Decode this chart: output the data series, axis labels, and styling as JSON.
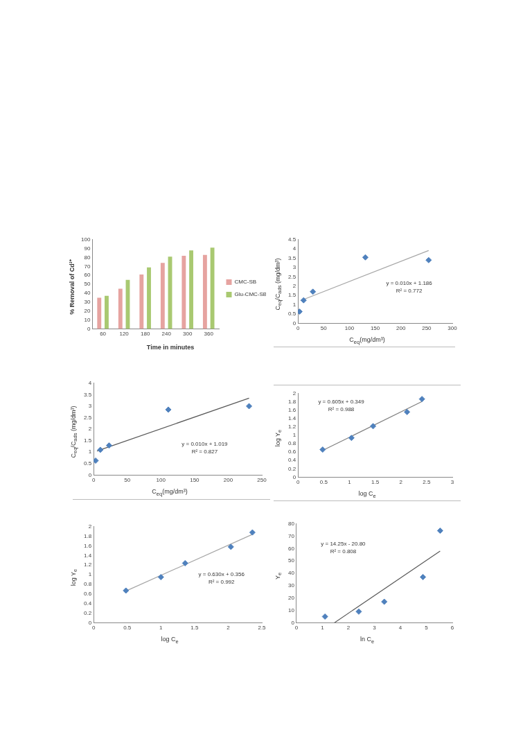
{
  "chart_data": [
    {
      "type": "bar",
      "xlabel": "Time in minutes",
      "ylabel": "% Removal of Cd²⁺",
      "categories": [
        "60",
        "120",
        "180",
        "240",
        "300",
        "360"
      ],
      "series": [
        {
          "name": "CMC-SB",
          "color": "#e6a3a0",
          "values": [
            35,
            45,
            61,
            74,
            82,
            83
          ]
        },
        {
          "name": "Glu-CMC-SB",
          "color": "#a9c971",
          "values": [
            37,
            55,
            69,
            81,
            88,
            91
          ]
        }
      ],
      "ylim": [
        0,
        100
      ],
      "yticks": [
        0,
        10,
        20,
        30,
        40,
        50,
        60,
        70,
        80,
        90,
        100
      ],
      "grid": false,
      "legend": "right"
    },
    {
      "type": "scatter",
      "xlabel": "C$_{eq}$(mg/dm³)",
      "ylabel": "C$_{eq}$/C$_{ads}$ (mg/dm³)",
      "marker": "diamond",
      "series": [
        {
          "color": "#4f81bd",
          "x": [
            3,
            11,
            29,
            131,
            254
          ],
          "values": [
            0.63,
            1.24,
            1.7,
            3.55,
            3.4
          ]
        },
        {
          "type": "line",
          "color": "#a6a6a6",
          "marker": "none",
          "x": [
            5,
            254
          ],
          "values": [
            1.22,
            3.92
          ]
        }
      ],
      "xlim": [
        0,
        300
      ],
      "xticks": [
        0,
        50,
        100,
        150,
        200,
        250,
        300
      ],
      "ylim": [
        0,
        4.5
      ],
      "yticks": [
        0,
        0.5,
        1,
        1.5,
        2,
        2.5,
        3,
        3.5,
        4,
        4.5
      ],
      "grid": false,
      "annotations": [
        "y = 0.010x + 1.186",
        "R² = 0.772"
      ]
    },
    {
      "type": "scatter",
      "xlabel": "C$_{eq}$(mg/dm³)",
      "ylabel": "C$_{eq}$/C$_{ads}$ (mg/dm³)",
      "marker": "diamond",
      "series": [
        {
          "color": "#4f81bd",
          "x": [
            3,
            10,
            23,
            111,
            231
          ],
          "values": [
            0.63,
            1.1,
            1.29,
            2.85,
            3.0
          ]
        },
        {
          "type": "line",
          "color": "#595959",
          "marker": "none",
          "x": [
            5,
            231
          ],
          "values": [
            1.05,
            3.35
          ]
        }
      ],
      "xlim": [
        0,
        250
      ],
      "xticks": [
        0,
        50,
        100,
        150,
        200,
        250
      ],
      "ylim": [
        0,
        4
      ],
      "yticks": [
        0,
        0.5,
        1,
        1.5,
        2,
        2.5,
        3,
        3.5,
        4
      ],
      "grid": false,
      "annotations": [
        "y = 0.010x + 1.019",
        "R² = 0.827"
      ]
    },
    {
      "type": "scatter",
      "xlabel": "log C$_{e}$",
      "ylabel": "log Y$_{e}$",
      "marker": "diamond",
      "series": [
        {
          "color": "#4f81bd",
          "x": [
            0.48,
            1.04,
            1.46,
            2.12,
            2.41
          ],
          "values": [
            0.66,
            0.94,
            1.22,
            1.56,
            1.87
          ]
        },
        {
          "type": "line",
          "color": "#7f7f7f",
          "marker": "none",
          "x": [
            0.48,
            2.41
          ],
          "values": [
            0.64,
            1.81
          ]
        }
      ],
      "xlim": [
        0,
        3
      ],
      "xticks": [
        0,
        0.5,
        1,
        1.5,
        2,
        2.5,
        3
      ],
      "ylim": [
        0,
        2
      ],
      "yticks": [
        0,
        0.2,
        0.4,
        0.6,
        0.8,
        1,
        1.2,
        1.4,
        1.6,
        1.8,
        2
      ],
      "grid": false,
      "annotations": [
        "y = 0.605x + 0.349",
        "R² = 0.988"
      ]
    },
    {
      "type": "scatter",
      "xlabel": "log C$_{e}$",
      "ylabel": "log Y$_{e}$",
      "marker": "diamond",
      "series": [
        {
          "color": "#4f81bd",
          "x": [
            0.48,
            1.0,
            1.36,
            2.04,
            2.36
          ],
          "values": [
            0.67,
            0.95,
            1.24,
            1.58,
            1.88
          ]
        },
        {
          "type": "line",
          "color": "#a6a6a6",
          "marker": "none",
          "x": [
            0.48,
            2.36
          ],
          "values": [
            0.66,
            1.84
          ]
        }
      ],
      "xlim": [
        0,
        2.5
      ],
      "xticks": [
        0,
        0.5,
        1,
        1.5,
        2,
        2.5
      ],
      "ylim": [
        0,
        2
      ],
      "yticks": [
        0,
        0.2,
        0.4,
        0.6,
        0.8,
        1,
        1.2,
        1.4,
        1.6,
        1.8,
        2
      ],
      "grid": false,
      "annotations": [
        "y = 0.630x + 0.356",
        "R² = 0.992"
      ]
    },
    {
      "type": "scatter",
      "xlabel": "ln C$_{e}$",
      "ylabel": "Y$_{e}$",
      "marker": "diamond",
      "series": [
        {
          "color": "#4f81bd",
          "x": [
            1.1,
            2.4,
            3.38,
            4.87,
            5.53
          ],
          "values": [
            5,
            9,
            17,
            37,
            74.5
          ]
        },
        {
          "type": "line",
          "color": "#595959",
          "marker": "none",
          "x": [
            1.46,
            5.53
          ],
          "values": [
            0,
            58
          ]
        }
      ],
      "xlim": [
        0,
        6
      ],
      "xticks": [
        0,
        1,
        2,
        3,
        4,
        5,
        6
      ],
      "ylim": [
        0,
        80
      ],
      "yticks": [
        0,
        10,
        20,
        30,
        40,
        50,
        60,
        70,
        80
      ],
      "grid": false,
      "annotations": [
        "y = 14.25x - 20.80",
        "R² = 0.808"
      ]
    }
  ]
}
